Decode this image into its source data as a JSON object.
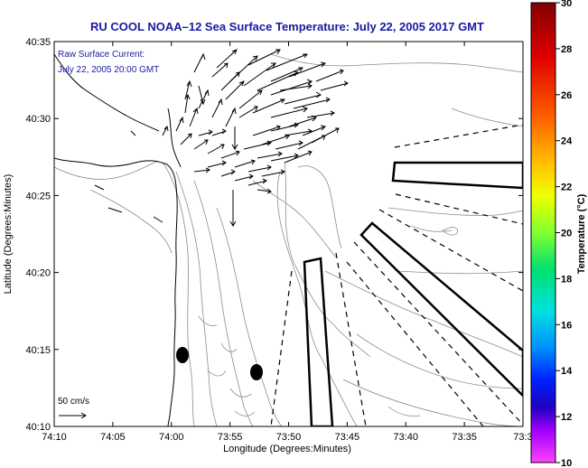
{
  "chart_data": {
    "type": "map",
    "title": "RU COOL  NOAA–12  Sea Surface Temperature:  July 22, 2005 2017 GMT",
    "xlabel": "Longitude (Degrees:Minutes)",
    "ylabel": "Latitude (Degrees:Minutes)",
    "x_ticks": [
      "74:10",
      "74:05",
      "74:00",
      "73:55",
      "73:50",
      "73:45",
      "73:40",
      "73:35",
      "73:3"
    ],
    "y_ticks": [
      "40:35",
      "40:30",
      "40:25",
      "40:20",
      "40:15",
      "40:10"
    ],
    "annotation_lines": [
      "Raw Surface Current:",
      "July 22, 2005 20:00 GMT"
    ],
    "scale_label": "50 cm/s",
    "colorbar": {
      "label": "Temperature (°C)",
      "ticks": [
        "30",
        "28",
        "26",
        "24",
        "22",
        "20",
        "18",
        "16",
        "14",
        "12",
        "10"
      ],
      "vmin": 10,
      "vmax": 30
    }
  },
  "colors": {
    "title": "#1a1aa0",
    "annotation": "#1a1aa0",
    "land_line": "#000000",
    "bathymetry": "#8c8c8c"
  }
}
